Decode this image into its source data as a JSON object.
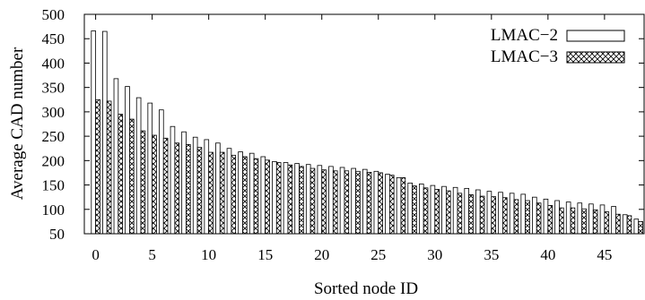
{
  "chart_data": {
    "type": "bar",
    "title": "",
    "xlabel": "Sorted node ID",
    "ylabel": "Average CAD number",
    "xlim": [
      -1,
      48.5
    ],
    "ylim": [
      50,
      500
    ],
    "xticks": [
      0,
      5,
      10,
      15,
      20,
      25,
      30,
      35,
      40,
      45
    ],
    "yticks": [
      50,
      100,
      150,
      200,
      250,
      300,
      350,
      400,
      450,
      500
    ],
    "grid": false,
    "legend_position": "top-right",
    "x": [
      0,
      1,
      2,
      3,
      4,
      5,
      6,
      7,
      8,
      9,
      10,
      11,
      12,
      13,
      14,
      15,
      16,
      17,
      18,
      19,
      20,
      21,
      22,
      23,
      24,
      25,
      26,
      27,
      28,
      29,
      30,
      31,
      32,
      33,
      34,
      35,
      36,
      37,
      38,
      39,
      40,
      41,
      42,
      43,
      44,
      45,
      46,
      47,
      48
    ],
    "series": [
      {
        "name": "LMAC−2",
        "pattern": "plain",
        "values": [
          466,
          465,
          368,
          352,
          329,
          318,
          304,
          270,
          259,
          248,
          243,
          236,
          225,
          218,
          215,
          208,
          198,
          196,
          194,
          192,
          190,
          188,
          186,
          184,
          182,
          178,
          172,
          165,
          154,
          152,
          149,
          147,
          145,
          143,
          140,
          137,
          135,
          133,
          131,
          125,
          121,
          118,
          115,
          113,
          111,
          109,
          106,
          89,
          80
        ]
      },
      {
        "name": "LMAC−3",
        "pattern": "crosshatch",
        "values": [
          325,
          322,
          295,
          285,
          261,
          252,
          246,
          236,
          233,
          227,
          217,
          217,
          211,
          208,
          204,
          201,
          196,
          191,
          188,
          184,
          181,
          179,
          179,
          178,
          176,
          175,
          170,
          165,
          148,
          144,
          141,
          138,
          133,
          130,
          127,
          126,
          124,
          120,
          118,
          113,
          108,
          103,
          103,
          101,
          99,
          95,
          90,
          87,
          75
        ]
      }
    ]
  },
  "colors": {
    "axis": "#000000",
    "bar_fill": "#ffffff",
    "bar_stroke": "#000000"
  }
}
